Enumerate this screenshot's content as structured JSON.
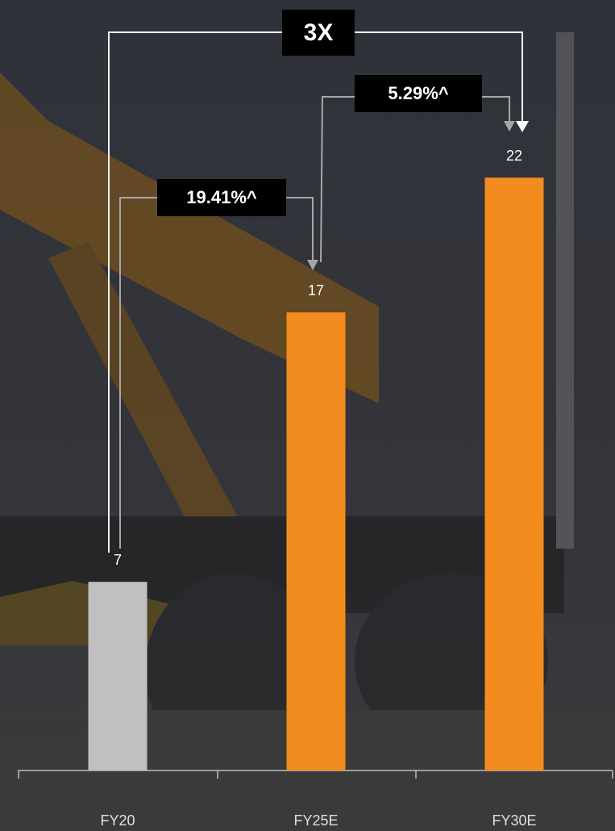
{
  "chart_data": {
    "type": "bar",
    "categories": [
      "FY20",
      "FY25E",
      "FY30E"
    ],
    "values": [
      7,
      17,
      22
    ],
    "colors": [
      "#c0c0c0",
      "#f28c1e",
      "#f28c1e"
    ],
    "ylim": [
      0,
      25
    ],
    "annotations": [
      "3X",
      "19.41%^",
      "5.29%^"
    ]
  }
}
